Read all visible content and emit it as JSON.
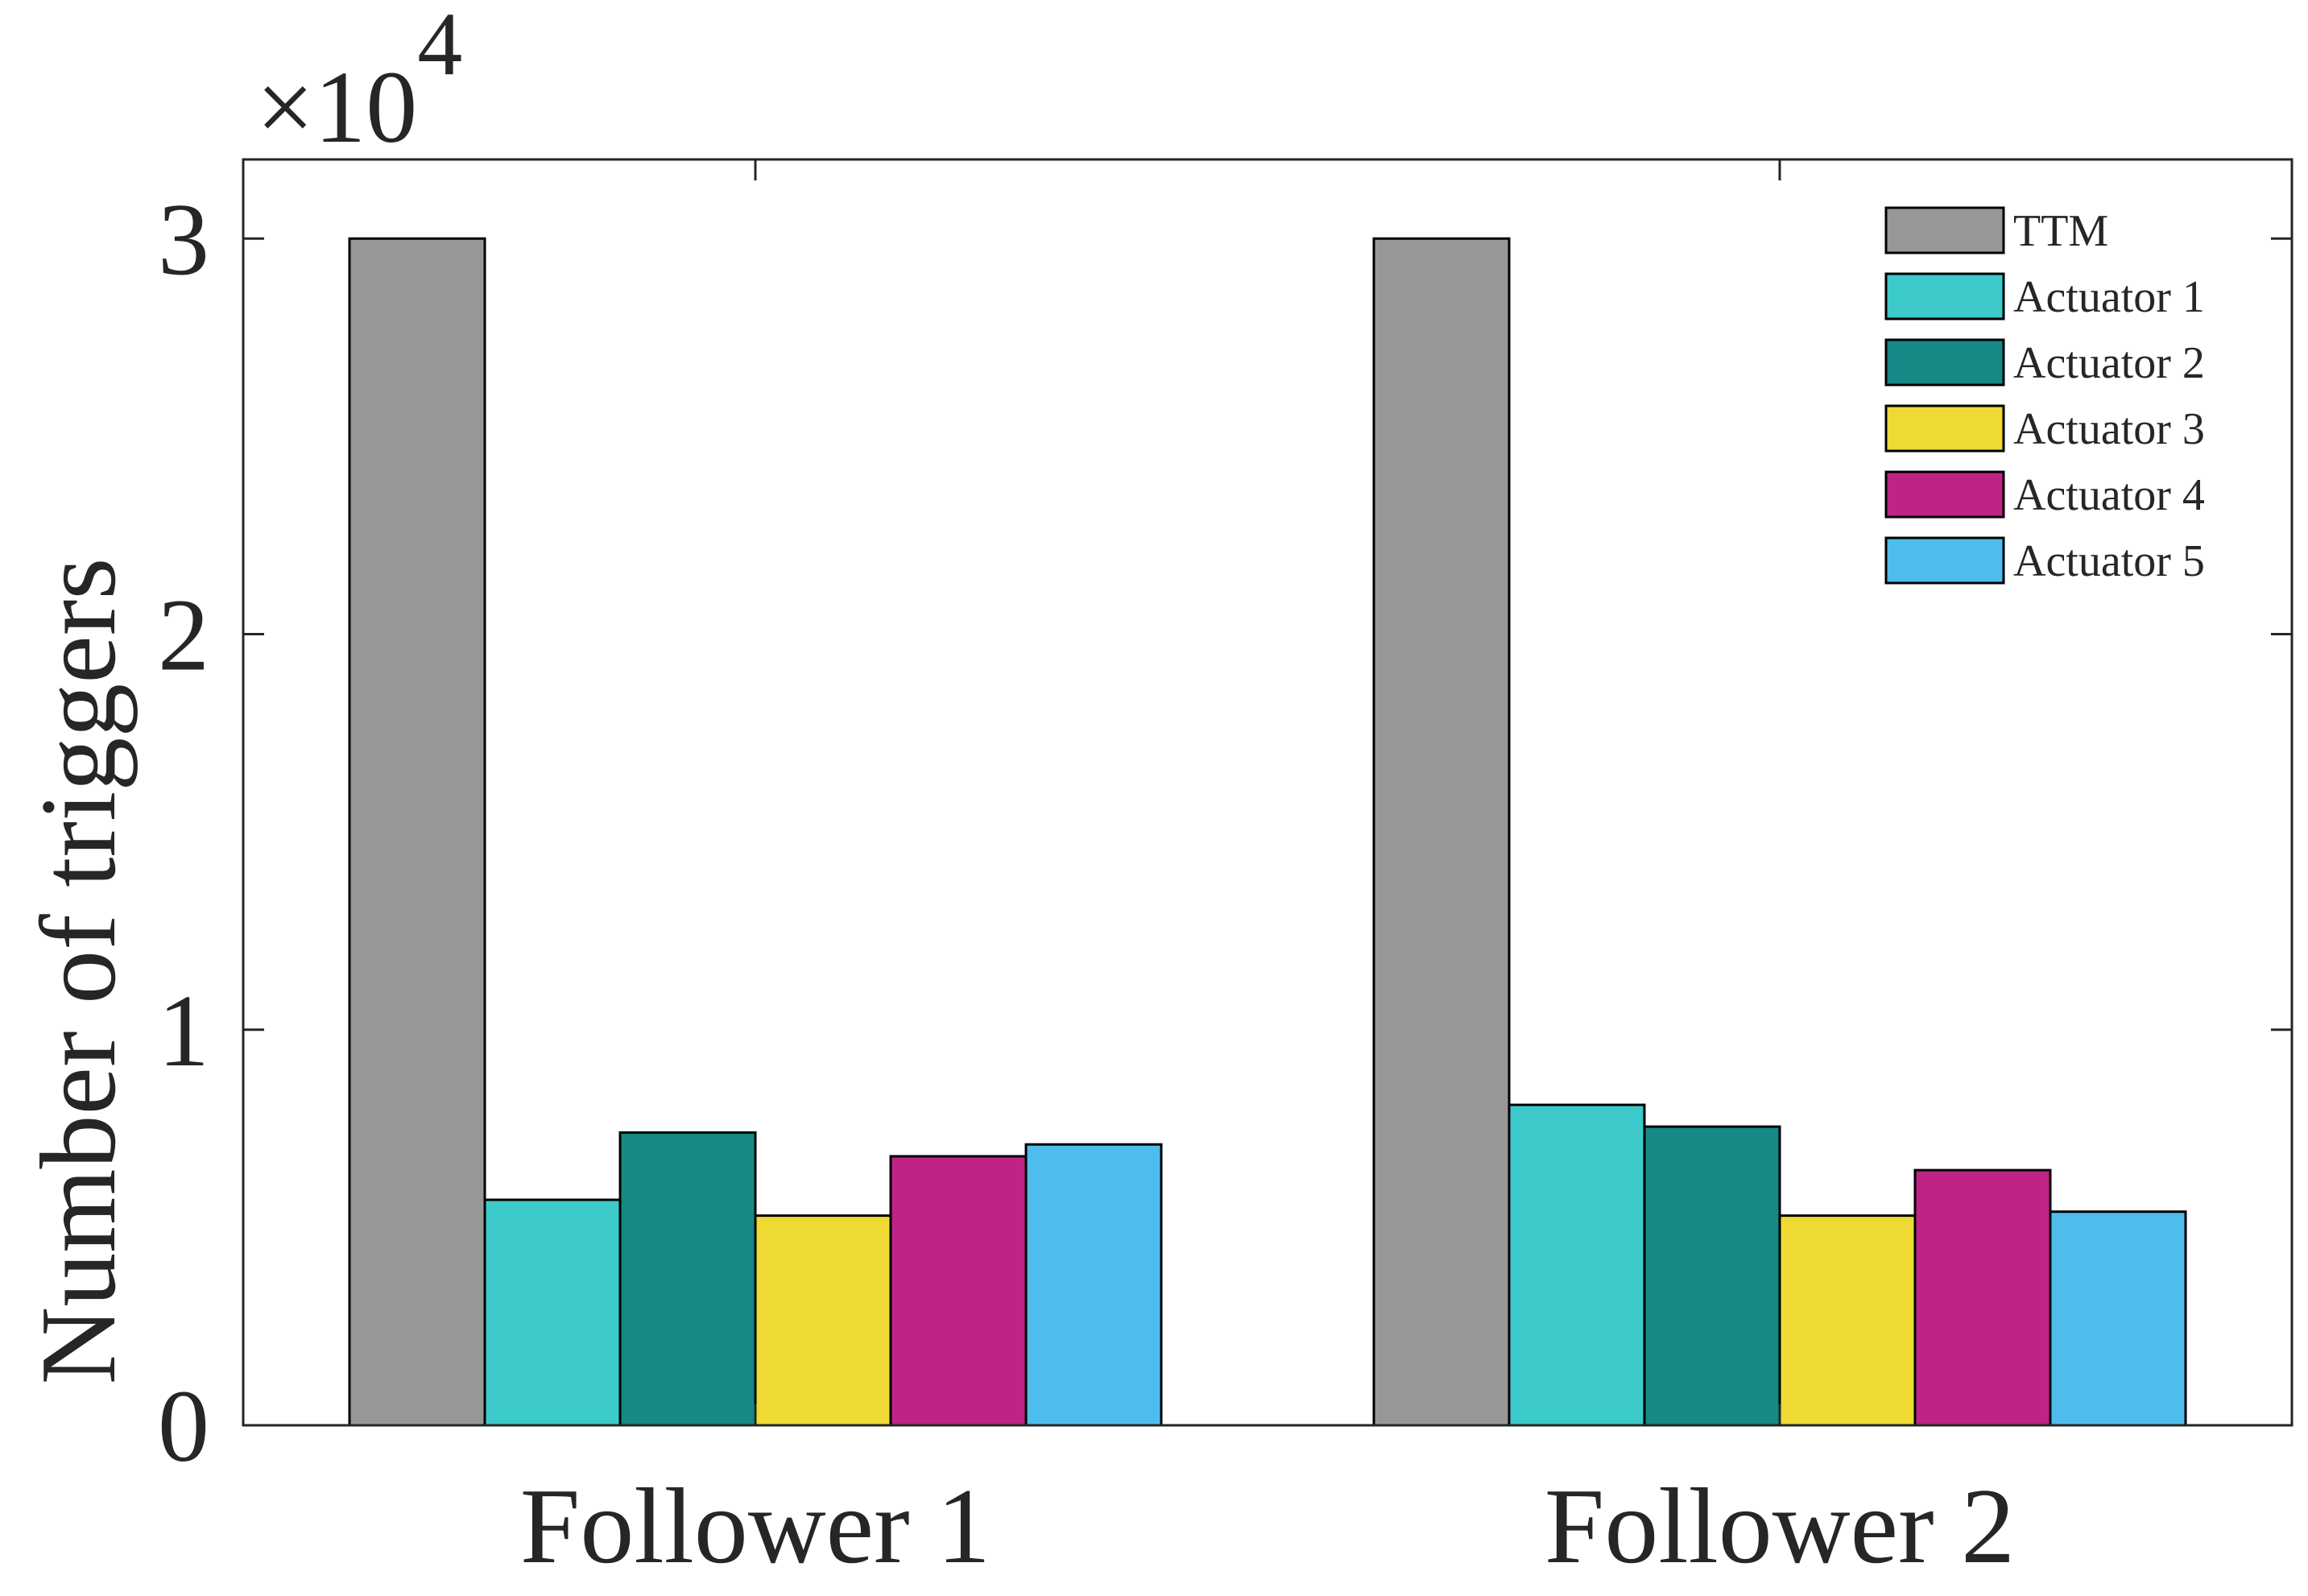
{
  "chart_data": {
    "type": "bar",
    "title": "",
    "xlabel": "",
    "ylabel": "Number of triggers",
    "y_multiplier_label": {
      "base": "×10",
      "exponent": "4"
    },
    "ylim": [
      0,
      3.2
    ],
    "yticks": [
      0,
      1,
      2,
      3
    ],
    "ytick_labels": [
      "0",
      "1",
      "2",
      "3"
    ],
    "categories": [
      "Follower 1",
      "Follower 2"
    ],
    "grid": false,
    "legend_position": "top-right",
    "series": [
      {
        "name": "TTM",
        "color": "#979797",
        "values": [
          3.0,
          3.0
        ]
      },
      {
        "name": "Actuator 1",
        "color": "#3CCACA",
        "values": [
          0.57,
          0.81
        ]
      },
      {
        "name": "Actuator 2",
        "color": "#158986",
        "values": [
          0.74,
          0.755
        ]
      },
      {
        "name": "Actuator 3",
        "color": "#EFDA33",
        "values": [
          0.53,
          0.53
        ]
      },
      {
        "name": "Actuator 4",
        "color": "#C02386",
        "values": [
          0.68,
          0.645
        ]
      },
      {
        "name": "Actuator 5",
        "color": "#4EBDEE",
        "values": [
          0.71,
          0.54
        ]
      }
    ]
  }
}
